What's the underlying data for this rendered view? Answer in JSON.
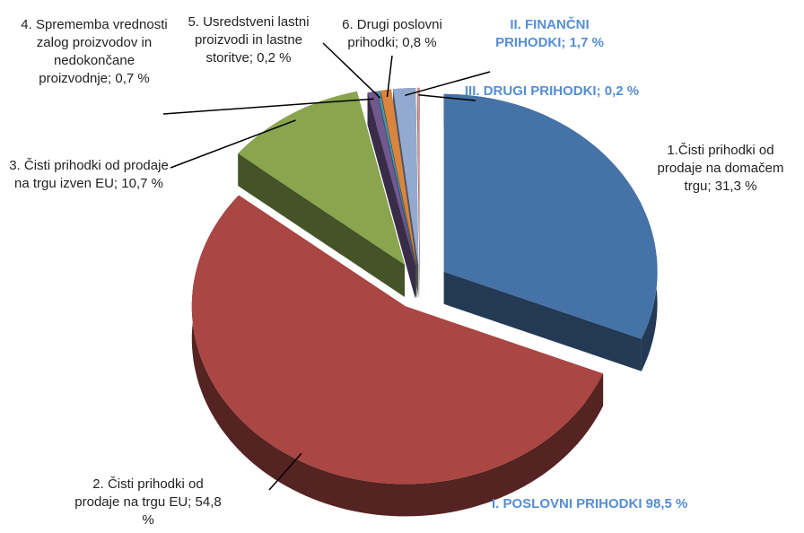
{
  "chart_data": {
    "type": "pie3d",
    "labels": [
      "1.Čisti prihodki od prodaje na domačem trgu; 31,3 %",
      "2. Čisti prihodki od prodaje na trgu EU; 54,8 %",
      "3. Čisti prihodki od prodaje na trgu izven EU; 10,7 %",
      "4. Sprememba vrednosti zalog proizvodov in nedokončane proizvodnje; 0,7 %",
      "5. Usredstveni lastni proizvodi in lastne storitve; 0,2 %",
      "6. Drugi poslovni prihodki; 0,8 %",
      "II. FINANČNI PRIHODKI; 1,7 %",
      "III. DRUGI PRIHODKI; 0,2 %"
    ],
    "values": [
      31.3,
      54.8,
      10.7,
      0.7,
      0.2,
      0.8,
      1.7,
      0.2
    ],
    "colors": [
      "#4572a7",
      "#aa4643",
      "#89a54e",
      "#71588f",
      "#4198af",
      "#db843d",
      "#93a9cf",
      "#d19392"
    ],
    "annotation": "I. POSLOVNI PRIHODKI 98,5 %"
  }
}
